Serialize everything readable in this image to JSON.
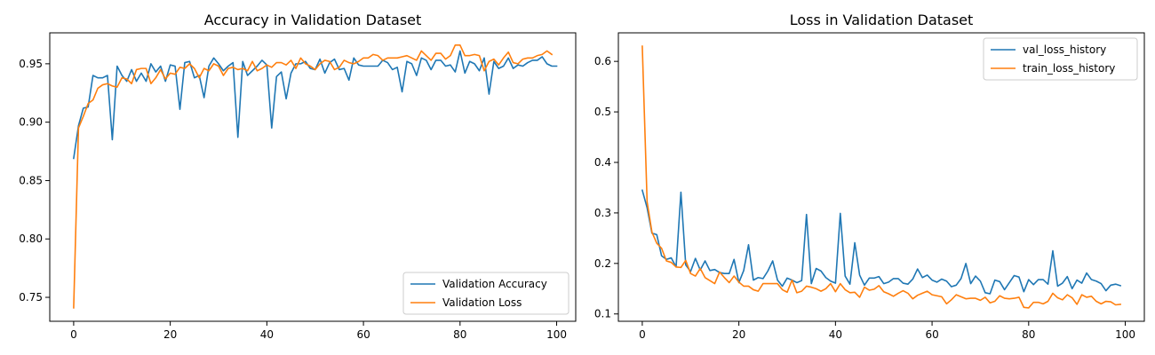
{
  "chart_data": [
    {
      "type": "line",
      "title": "Accuracy in Validation Dataset",
      "xlabel": "",
      "ylabel": "",
      "xlim": [
        -4.95,
        103.95
      ],
      "ylim": [
        0.7295,
        0.9765
      ],
      "xticks": [
        0,
        20,
        40,
        60,
        80,
        100
      ],
      "yticks": [
        0.75,
        0.8,
        0.85,
        0.9,
        0.95
      ],
      "ytick_labels": [
        "0.75",
        "0.80",
        "0.85",
        "0.90",
        "0.95"
      ],
      "grid": false,
      "legend": "lower-right",
      "series": [
        {
          "name": "Validation Accuracy",
          "color": "#1f77b4",
          "values": [
            0.869,
            0.897,
            0.912,
            0.913,
            0.94,
            0.938,
            0.938,
            0.94,
            0.885,
            0.948,
            0.94,
            0.935,
            0.945,
            0.935,
            0.942,
            0.935,
            0.95,
            0.943,
            0.948,
            0.935,
            0.949,
            0.948,
            0.911,
            0.951,
            0.952,
            0.938,
            0.94,
            0.921,
            0.948,
            0.955,
            0.95,
            0.944,
            0.948,
            0.951,
            0.887,
            0.952,
            0.94,
            0.944,
            0.948,
            0.953,
            0.949,
            0.895,
            0.939,
            0.943,
            0.92,
            0.942,
            0.95,
            0.95,
            0.952,
            0.946,
            0.945,
            0.954,
            0.942,
            0.951,
            0.954,
            0.945,
            0.946,
            0.936,
            0.955,
            0.949,
            0.948,
            0.948,
            0.948,
            0.948,
            0.953,
            0.951,
            0.945,
            0.947,
            0.926,
            0.952,
            0.95,
            0.94,
            0.955,
            0.953,
            0.945,
            0.953,
            0.953,
            0.948,
            0.949,
            0.943,
            0.961,
            0.942,
            0.952,
            0.95,
            0.944,
            0.955,
            0.924,
            0.952,
            0.946,
            0.948,
            0.955,
            0.946,
            0.949,
            0.948,
            0.951,
            0.953,
            0.953,
            0.956,
            0.95,
            0.948,
            0.948
          ]
        },
        {
          "name": "Validation Loss",
          "color": "#ff7f0e",
          "values": [
            0.741,
            0.895,
            0.905,
            0.916,
            0.919,
            0.929,
            0.932,
            0.933,
            0.931,
            0.93,
            0.938,
            0.937,
            0.933,
            0.945,
            0.946,
            0.946,
            0.933,
            0.938,
            0.945,
            0.937,
            0.942,
            0.941,
            0.947,
            0.946,
            0.95,
            0.946,
            0.938,
            0.946,
            0.944,
            0.95,
            0.948,
            0.94,
            0.946,
            0.947,
            0.945,
            0.946,
            0.944,
            0.952,
            0.944,
            0.946,
            0.949,
            0.947,
            0.951,
            0.951,
            0.949,
            0.953,
            0.946,
            0.955,
            0.95,
            0.948,
            0.945,
            0.95,
            0.953,
            0.952,
            0.945,
            0.947,
            0.953,
            0.951,
            0.95,
            0.952,
            0.955,
            0.955,
            0.958,
            0.957,
            0.953,
            0.955,
            0.955,
            0.955,
            0.956,
            0.957,
            0.955,
            0.953,
            0.961,
            0.957,
            0.953,
            0.959,
            0.959,
            0.954,
            0.957,
            0.966,
            0.966,
            0.957,
            0.957,
            0.958,
            0.957,
            0.944,
            0.952,
            0.954,
            0.949,
            0.955,
            0.96,
            0.951,
            0.95,
            0.954,
            0.955,
            0.955,
            0.957,
            0.958,
            0.961,
            0.958
          ]
        }
      ]
    },
    {
      "type": "line",
      "title": "Loss in Validation Dataset",
      "xlabel": "",
      "ylabel": "",
      "xlim": [
        -4.95,
        103.95
      ],
      "ylim": [
        0.0855,
        0.6565
      ],
      "xticks": [
        0,
        20,
        40,
        60,
        80,
        100
      ],
      "yticks": [
        0.1,
        0.2,
        0.3,
        0.4,
        0.5,
        0.6
      ],
      "ytick_labels": [
        "0.1",
        "0.2",
        "0.3",
        "0.4",
        "0.5",
        "0.6"
      ],
      "grid": false,
      "legend": "upper-right",
      "series": [
        {
          "name": "val_loss_history",
          "color": "#1f77b4",
          "values": [
            0.345,
            0.31,
            0.26,
            0.257,
            0.215,
            0.208,
            0.211,
            0.193,
            0.341,
            0.197,
            0.184,
            0.21,
            0.187,
            0.205,
            0.186,
            0.188,
            0.182,
            0.18,
            0.18,
            0.208,
            0.162,
            0.186,
            0.237,
            0.167,
            0.172,
            0.17,
            0.185,
            0.205,
            0.167,
            0.155,
            0.171,
            0.167,
            0.162,
            0.166,
            0.297,
            0.16,
            0.19,
            0.185,
            0.172,
            0.165,
            0.161,
            0.299,
            0.175,
            0.159,
            0.241,
            0.177,
            0.157,
            0.171,
            0.171,
            0.174,
            0.16,
            0.163,
            0.17,
            0.17,
            0.161,
            0.159,
            0.169,
            0.189,
            0.172,
            0.177,
            0.167,
            0.163,
            0.169,
            0.165,
            0.154,
            0.157,
            0.17,
            0.2,
            0.16,
            0.175,
            0.165,
            0.142,
            0.14,
            0.167,
            0.164,
            0.148,
            0.162,
            0.176,
            0.173,
            0.144,
            0.168,
            0.158,
            0.168,
            0.168,
            0.159,
            0.225,
            0.155,
            0.161,
            0.174,
            0.15,
            0.167,
            0.161,
            0.181,
            0.168,
            0.165,
            0.16,
            0.146,
            0.157,
            0.159,
            0.156
          ]
        },
        {
          "name": "train_loss_history",
          "color": "#ff7f0e",
          "values": [
            0.63,
            0.322,
            0.262,
            0.24,
            0.23,
            0.205,
            0.202,
            0.193,
            0.192,
            0.206,
            0.18,
            0.175,
            0.19,
            0.172,
            0.166,
            0.16,
            0.183,
            0.172,
            0.162,
            0.175,
            0.163,
            0.155,
            0.155,
            0.148,
            0.145,
            0.16,
            0.16,
            0.16,
            0.16,
            0.148,
            0.143,
            0.167,
            0.142,
            0.145,
            0.155,
            0.153,
            0.15,
            0.145,
            0.15,
            0.16,
            0.144,
            0.16,
            0.148,
            0.142,
            0.143,
            0.133,
            0.153,
            0.147,
            0.149,
            0.156,
            0.144,
            0.14,
            0.135,
            0.141,
            0.146,
            0.141,
            0.13,
            0.137,
            0.141,
            0.145,
            0.138,
            0.136,
            0.134,
            0.12,
            0.128,
            0.138,
            0.134,
            0.13,
            0.131,
            0.131,
            0.127,
            0.133,
            0.122,
            0.125,
            0.136,
            0.131,
            0.13,
            0.131,
            0.133,
            0.113,
            0.112,
            0.123,
            0.123,
            0.12,
            0.125,
            0.141,
            0.132,
            0.128,
            0.138,
            0.132,
            0.119,
            0.138,
            0.133,
            0.135,
            0.125,
            0.12,
            0.125,
            0.124,
            0.118,
            0.119
          ]
        }
      ]
    }
  ]
}
